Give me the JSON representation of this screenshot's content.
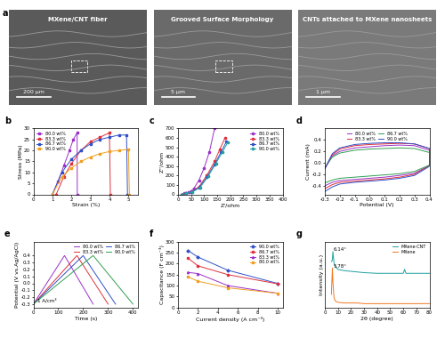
{
  "panel_a": {
    "label": "a",
    "images": [
      {
        "caption": "MXene/CNT fiber",
        "scale_bar": "200 μm"
      },
      {
        "caption": "Grooved Surface Morphology",
        "scale_bar": "5 μm"
      },
      {
        "caption": "CNTs attached to MXene nanosheets",
        "scale_bar": "1 μm"
      }
    ]
  },
  "chart_data": [
    {
      "type": "line",
      "label": "b",
      "x_label": "Strain (%)",
      "y_label": "Stress (MPa)",
      "xlim": [
        0,
        5.5
      ],
      "xticks": [
        0,
        1,
        2,
        3,
        4,
        5
      ],
      "ylim": [
        0,
        30
      ],
      "yticks": [
        0,
        5,
        10,
        15,
        20,
        25,
        30
      ],
      "grid": false,
      "legend": "upper left",
      "series": [
        {
          "name": "80.0 wt%",
          "color": "#9b30c8",
          "marker": "square",
          "x": [
            1.0,
            1.3,
            1.6,
            1.9,
            2.1,
            2.3,
            2.31
          ],
          "values": [
            0,
            6,
            13,
            20,
            25,
            28,
            0
          ]
        },
        {
          "name": "83.3 wt%",
          "color": "#e0303a",
          "marker": "square",
          "x": [
            1.2,
            1.6,
            2.0,
            2.5,
            3.0,
            3.5,
            4.0,
            4.05
          ],
          "values": [
            0,
            8,
            14,
            20,
            24,
            26,
            28,
            0
          ]
        },
        {
          "name": "86.7 wt%",
          "color": "#3050c8",
          "marker": "square",
          "x": [
            1.0,
            1.5,
            2.0,
            2.5,
            3.0,
            3.5,
            4.0,
            4.5,
            4.9,
            4.95
          ],
          "values": [
            0,
            10,
            16,
            20,
            23,
            25,
            26,
            27,
            27,
            0
          ]
        },
        {
          "name": "90.0 wt%",
          "color": "#f0a020",
          "marker": "square",
          "x": [
            1.0,
            1.5,
            2.0,
            2.5,
            3.0,
            3.5,
            4.0,
            4.5,
            5.0,
            5.05
          ],
          "values": [
            0,
            8,
            12,
            15,
            17,
            18.5,
            19.5,
            20,
            20.5,
            0
          ]
        }
      ]
    },
    {
      "type": "line",
      "label": "c",
      "x_label": "Z'/ohm",
      "y_label": "Z''/ohm",
      "xlim": [
        0,
        400
      ],
      "xticks": [
        0,
        50,
        100,
        150,
        200,
        250,
        300,
        350,
        400
      ],
      "ylim": [
        0,
        700
      ],
      "yticks": [
        0,
        100,
        200,
        300,
        400,
        500,
        600,
        700
      ],
      "grid": false,
      "legend": "upper right",
      "series": [
        {
          "name": "80.0 wt%",
          "color": "#9b30c8",
          "marker": "circle",
          "x": [
            15,
            25,
            40,
            60,
            80,
            100,
            120,
            140
          ],
          "values": [
            0,
            10,
            20,
            60,
            150,
            280,
            450,
            700
          ]
        },
        {
          "name": "83.3 wt%",
          "color": "#e0303a",
          "marker": "circle",
          "x": [
            15,
            30,
            50,
            80,
            110,
            140,
            160,
            180
          ],
          "values": [
            0,
            12,
            25,
            80,
            200,
            350,
            480,
            600
          ]
        },
        {
          "name": "86.7 wt%",
          "color": "#3050c8",
          "marker": "circle",
          "x": [
            15,
            30,
            50,
            80,
            110,
            140,
            165,
            185
          ],
          "values": [
            0,
            12,
            22,
            70,
            180,
            320,
            450,
            560
          ]
        },
        {
          "name": "90.0 wt%",
          "color": "#20a0a0",
          "marker": "circle",
          "x": [
            15,
            30,
            55,
            85,
            115,
            145,
            170,
            190
          ],
          "values": [
            0,
            12,
            25,
            75,
            190,
            330,
            450,
            550
          ]
        }
      ]
    },
    {
      "type": "line",
      "label": "d",
      "x_label": "Potential (V)",
      "y_label": "Current (mA)",
      "xlim": [
        -0.3,
        0.4
      ],
      "xticks": [
        -0.3,
        -0.2,
        -0.1,
        {
          "value": 0,
          "label": "0.0"
        },
        0.1,
        0.2,
        0.3,
        0.4
      ],
      "ylim": [
        -0.55,
        0.6
      ],
      "yticks": [
        -0.4,
        -0.2,
        {
          "value": 0,
          "label": "0.0"
        },
        0.2,
        0.4
      ],
      "grid": false,
      "legend": "upper center",
      "series": [
        {
          "name": "80.0 wt%",
          "color": "#9b30c8",
          "marker": "none",
          "x": [
            -0.3,
            -0.25,
            -0.2,
            -0.1,
            0.0,
            0.1,
            0.2,
            0.3,
            0.4,
            0.4,
            0.3,
            0.2,
            0.1,
            0.0,
            -0.1,
            -0.2,
            -0.25,
            -0.3
          ],
          "values": [
            -0.1,
            0.12,
            0.2,
            0.26,
            0.28,
            0.3,
            0.31,
            0.3,
            0.22,
            -0.05,
            -0.18,
            -0.22,
            -0.25,
            -0.27,
            -0.29,
            -0.31,
            -0.34,
            -0.4
          ]
        },
        {
          "name": "83.3 wt%",
          "color": "#e0303a",
          "marker": "none",
          "x": [
            -0.3,
            -0.25,
            -0.2,
            -0.1,
            0.0,
            0.1,
            0.2,
            0.3,
            0.4,
            0.4,
            0.3,
            0.2,
            0.1,
            0.0,
            -0.1,
            -0.2,
            -0.25,
            -0.3
          ],
          "values": [
            -0.1,
            0.14,
            0.24,
            0.3,
            0.32,
            0.33,
            0.34,
            0.33,
            0.25,
            -0.05,
            -0.2,
            -0.25,
            -0.28,
            -0.3,
            -0.32,
            -0.34,
            -0.38,
            -0.45
          ]
        },
        {
          "name": "86.7 wt%",
          "color": "#30a050",
          "marker": "none",
          "x": [
            -0.3,
            -0.25,
            -0.2,
            -0.1,
            0.0,
            0.1,
            0.2,
            0.3,
            0.4,
            0.4,
            0.3,
            0.2,
            0.1,
            0.0,
            -0.1,
            -0.2,
            -0.25,
            -0.3
          ],
          "values": [
            -0.08,
            0.1,
            0.17,
            0.22,
            0.24,
            0.25,
            0.26,
            0.25,
            0.18,
            -0.04,
            -0.15,
            -0.19,
            -0.21,
            -0.23,
            -0.25,
            -0.27,
            -0.3,
            -0.35
          ]
        },
        {
          "name": "90.0 wt%",
          "color": "#3050c8",
          "marker": "none",
          "x": [
            -0.3,
            -0.25,
            -0.2,
            -0.1,
            0.0,
            0.1,
            0.2,
            0.3,
            0.4,
            0.4,
            0.3,
            0.2,
            0.1,
            0.0,
            -0.1,
            -0.2,
            -0.25,
            -0.3
          ],
          "values": [
            -0.1,
            0.16,
            0.26,
            0.32,
            0.34,
            0.35,
            0.35,
            0.33,
            0.25,
            -0.06,
            -0.22,
            -0.27,
            -0.3,
            -0.32,
            -0.34,
            -0.37,
            -0.42,
            -0.5
          ]
        }
      ]
    },
    {
      "type": "line",
      "label": "e",
      "x_label": "Time (s)",
      "y_label": "Potential (V vs.Ag/AgCl)",
      "xlim": [
        0,
        420
      ],
      "xticks": [
        0,
        100,
        200,
        300,
        400
      ],
      "ylim": [
        -0.35,
        0.6
      ],
      "yticks": [
        -0.3,
        -0.2,
        -0.1,
        {
          "value": 0,
          "label": "0.0"
        },
        0.1,
        0.2,
        0.3,
        0.4
      ],
      "grid": false,
      "legend": "upper right",
      "annotations": [
        {
          "text": "1 A/cm³",
          "x": 15,
          "y": -0.25
        }
      ],
      "series": [
        {
          "name": "80.0 wt%",
          "color": "#9b30c8",
          "marker": "none",
          "x": [
            0,
            125,
            240
          ],
          "values": [
            -0.3,
            0.4,
            -0.3
          ]
        },
        {
          "name": "83.3 wt%",
          "color": "#e0303a",
          "marker": "none",
          "x": [
            0,
            175,
            300
          ],
          "values": [
            -0.3,
            0.4,
            -0.3
          ]
        },
        {
          "name": "86.7 wt%",
          "color": "#3050c8",
          "marker": "none",
          "x": [
            0,
            200,
            330
          ],
          "values": [
            -0.3,
            0.4,
            -0.3
          ]
        },
        {
          "name": "90.0 wt%",
          "color": "#30a050",
          "marker": "none",
          "x": [
            0,
            240,
            400
          ],
          "values": [
            -0.3,
            0.4,
            -0.3
          ]
        }
      ]
    },
    {
      "type": "line",
      "label": "f",
      "x_label": "Current density (A cm⁻³)",
      "y_label": "Capacitance (F cm⁻³)",
      "xlim": [
        0,
        10.5
      ],
      "xticks": [
        0,
        2,
        4,
        6,
        8,
        10
      ],
      "ylim": [
        0,
        300
      ],
      "yticks": [
        0,
        50,
        100,
        150,
        200,
        250,
        300
      ],
      "grid": false,
      "legend": "upper right",
      "series": [
        {
          "name": "90.0 wt%",
          "color": "#3050c8",
          "marker": "diamond",
          "x": [
            1,
            2,
            5,
            10
          ],
          "values": [
            260,
            230,
            170,
            110
          ]
        },
        {
          "name": "86.7 wt%",
          "color": "#e0303a",
          "marker": "circle",
          "x": [
            1,
            2,
            5,
            10
          ],
          "values": [
            225,
            190,
            150,
            108
          ]
        },
        {
          "name": "83.3 wt%",
          "color": "#9b30c8",
          "marker": "triangle",
          "x": [
            1,
            2,
            5,
            10
          ],
          "values": [
            160,
            155,
            100,
            65
          ]
        },
        {
          "name": "80.0 wt%",
          "color": "#f0a020",
          "marker": "square",
          "x": [
            1,
            2,
            5,
            10
          ],
          "values": [
            140,
            120,
            90,
            65
          ]
        }
      ]
    },
    {
      "type": "line",
      "label": "g",
      "x_label": "2θ (degree)",
      "y_label": "Intensity (a.u.)",
      "xlim": [
        0,
        80
      ],
      "xticks": [
        0,
        10,
        20,
        30,
        40,
        50,
        60,
        70,
        80
      ],
      "ylim": [
        0,
        100
      ],
      "yticks": [],
      "tick_labels": "x",
      "grid": false,
      "legend": "upper right",
      "annotations": [
        {
          "text": "6.14°",
          "x": 6.5,
          "y": 88
        },
        {
          "text": "5.78°",
          "x": 6.5,
          "y": 63
        }
      ],
      "series": [
        {
          "name": "MXene-CNT",
          "color": "#20a0a0",
          "marker": "none",
          "x": [
            5,
            5.78,
            6.14,
            7,
            8,
            10,
            15,
            20,
            25,
            30,
            40,
            50,
            60,
            61,
            62,
            70,
            80
          ],
          "values": [
            70,
            72,
            85,
            68,
            62,
            58,
            56,
            55,
            54,
            53,
            52,
            52,
            52,
            58,
            52,
            52,
            52
          ]
        },
        {
          "name": "MXene",
          "color": "#f07820",
          "marker": "none",
          "x": [
            5,
            5.78,
            6.14,
            7,
            8,
            10,
            15,
            20,
            25,
            30,
            40,
            50,
            60,
            61,
            62,
            70,
            80
          ],
          "values": [
            20,
            60,
            40,
            15,
            10,
            8,
            7,
            7,
            7,
            6,
            6,
            6,
            6,
            6,
            6,
            6,
            6
          ]
        }
      ]
    }
  ]
}
